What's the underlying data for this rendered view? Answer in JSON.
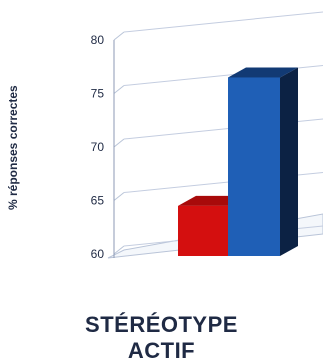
{
  "chart_data": {
    "type": "bar",
    "ylabel": "% réponses correctes",
    "ylim": [
      60,
      80
    ],
    "yticks": [
      {
        "value": 60,
        "label": "60"
      },
      {
        "value": 65,
        "label": "65"
      },
      {
        "value": 70,
        "label": "70"
      },
      {
        "value": 75,
        "label": "75"
      },
      {
        "value": 80,
        "label": "80"
      }
    ],
    "categories": [
      "STÉRÉOTYPE",
      "ACTIF"
    ],
    "series": [
      {
        "color": "#d40f0f",
        "value": 64.5
      },
      {
        "color": "#1f5fb6",
        "value": 76.5
      }
    ],
    "grid": true,
    "style": "3d"
  }
}
